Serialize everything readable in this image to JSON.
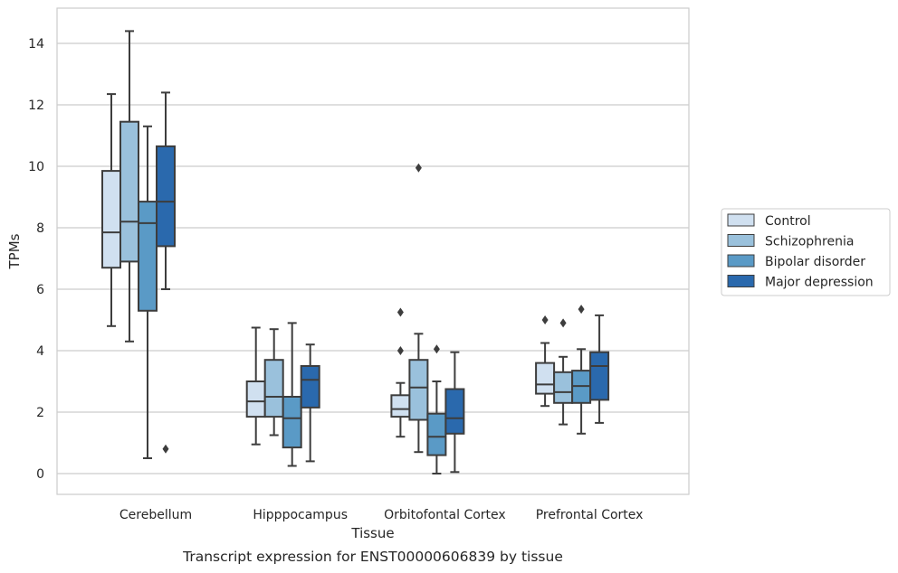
{
  "chart_data": {
    "type": "box",
    "xlabel": "Tissue",
    "ylabel": "TPMs",
    "caption": "Transcript expression for ENST00000606839 by tissue",
    "ylim": [
      -0.7,
      15.1
    ],
    "yticks": [
      0,
      2,
      4,
      6,
      8,
      10,
      12,
      14
    ],
    "categories": [
      "Cerebellum",
      "Hipppocampus",
      "Orbitofontal Cortex",
      "Prefrontal Cortex"
    ],
    "grid": "horizontal",
    "legend_position": "right",
    "series": [
      {
        "name": "Control",
        "color": "#d0e0f0",
        "boxes": [
          {
            "whislo": 4.8,
            "q1": 6.7,
            "med": 7.85,
            "q3": 9.85,
            "whishi": 12.35,
            "fliers": []
          },
          {
            "whislo": 0.95,
            "q1": 1.85,
            "med": 2.35,
            "q3": 3.0,
            "whishi": 4.75,
            "fliers": []
          },
          {
            "whislo": 1.2,
            "q1": 1.85,
            "med": 2.1,
            "q3": 2.55,
            "whishi": 2.95,
            "fliers": [
              5.25,
              4.0
            ]
          },
          {
            "whislo": 2.2,
            "q1": 2.6,
            "med": 2.9,
            "q3": 3.6,
            "whishi": 4.25,
            "fliers": [
              5.0
            ]
          }
        ]
      },
      {
        "name": "Schizophrenia",
        "color": "#9ac1dc",
        "boxes": [
          {
            "whislo": 4.3,
            "q1": 6.9,
            "med": 8.2,
            "q3": 11.45,
            "whishi": 14.4,
            "fliers": []
          },
          {
            "whislo": 1.25,
            "q1": 1.85,
            "med": 2.5,
            "q3": 3.7,
            "whishi": 4.7,
            "fliers": []
          },
          {
            "whislo": 0.7,
            "q1": 1.75,
            "med": 2.8,
            "q3": 3.7,
            "whishi": 4.55,
            "fliers": [
              9.95
            ]
          },
          {
            "whislo": 1.6,
            "q1": 2.3,
            "med": 2.65,
            "q3": 3.3,
            "whishi": 3.8,
            "fliers": [
              4.9
            ]
          }
        ]
      },
      {
        "name": "Bipolar disorder",
        "color": "#5a9ac6",
        "boxes": [
          {
            "whislo": 0.5,
            "q1": 5.3,
            "med": 8.15,
            "q3": 8.85,
            "whishi": 11.3,
            "fliers": []
          },
          {
            "whislo": 0.25,
            "q1": 0.85,
            "med": 1.8,
            "q3": 2.5,
            "whishi": 4.9,
            "fliers": []
          },
          {
            "whislo": 0.0,
            "q1": 0.6,
            "med": 1.2,
            "q3": 1.95,
            "whishi": 3.0,
            "fliers": [
              4.05
            ]
          },
          {
            "whislo": 1.3,
            "q1": 2.3,
            "med": 2.85,
            "q3": 3.35,
            "whishi": 4.05,
            "fliers": [
              5.35
            ]
          }
        ]
      },
      {
        "name": "Major depression",
        "color": "#2a69ad",
        "boxes": [
          {
            "whislo": 6.0,
            "q1": 7.4,
            "med": 8.85,
            "q3": 10.65,
            "whishi": 12.4,
            "fliers": [
              0.8
            ]
          },
          {
            "whislo": 0.4,
            "q1": 2.15,
            "med": 3.05,
            "q3": 3.5,
            "whishi": 4.2,
            "fliers": []
          },
          {
            "whislo": 0.05,
            "q1": 1.3,
            "med": 1.8,
            "q3": 2.75,
            "whishi": 3.95,
            "fliers": []
          },
          {
            "whislo": 1.65,
            "q1": 2.4,
            "med": 3.5,
            "q3": 3.95,
            "whishi": 5.15,
            "fliers": []
          }
        ]
      }
    ]
  }
}
